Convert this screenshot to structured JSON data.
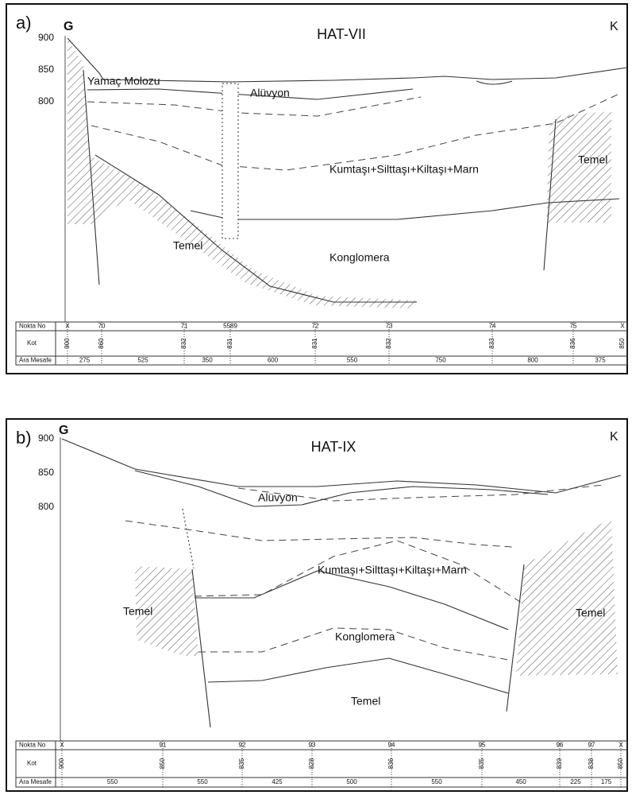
{
  "panels": [
    {
      "label": "a)",
      "left_end": "G",
      "right_end": "K",
      "title": "HAT-VII",
      "elevations": [
        "900",
        "850",
        "800"
      ],
      "units": [
        "Yamaç Molozu",
        "Alüvyon",
        "Kumtaşı+Silttaşı+Kiltaşı+Marn",
        "Temel",
        "Temel",
        "Konglomera"
      ],
      "table": {
        "row_headers": [
          "Nokta No",
          "Kot",
          "Ara Mesafe"
        ],
        "points": [
          "X",
          "70",
          "71",
          "5589",
          "72",
          "73",
          "74",
          "75",
          "X"
        ],
        "elevations": [
          "900",
          "860",
          "832",
          "831",
          "831",
          "832",
          "833",
          "836",
          "850"
        ],
        "distances": [
          "275",
          "525",
          "350",
          "600",
          "550",
          "750",
          "800",
          "375"
        ]
      }
    },
    {
      "label": "b)",
      "left_end": "G",
      "right_end": "K",
      "title": "HAT-IX",
      "elevations": [
        "900",
        "850",
        "800"
      ],
      "units": [
        "Alüvyon",
        "Kumtaşı+Silttaşı+Kiltaşı+Marn",
        "Temel",
        "Konglomera",
        "Temel",
        "Temel"
      ],
      "table": {
        "row_headers": [
          "Nokta No",
          "Kot",
          "Ara Mesafe"
        ],
        "points": [
          "X",
          "91",
          "92",
          "93",
          "94",
          "95",
          "96",
          "97",
          "X"
        ],
        "elevations": [
          "900",
          "850",
          "835",
          "828",
          "836",
          "835",
          "839",
          "838",
          "850"
        ],
        "distances": [
          "550",
          "550",
          "425",
          "500",
          "550",
          "450",
          "225",
          "175"
        ]
      }
    }
  ]
}
